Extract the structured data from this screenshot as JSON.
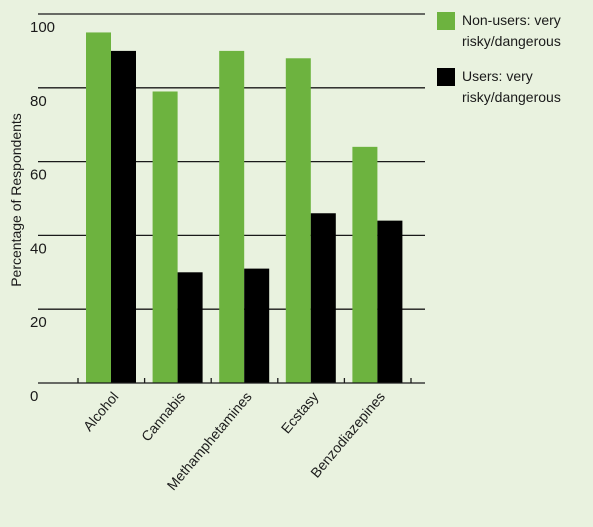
{
  "chart_data": {
    "type": "bar",
    "title": "",
    "xlabel": "",
    "ylabel": "Percentage of Respondents",
    "ylim": [
      0,
      100
    ],
    "yticks": [
      0,
      20,
      40,
      60,
      80,
      100
    ],
    "grid": true,
    "legend_position": "top-right",
    "categories": [
      "Alcohol",
      "Cannabis",
      "Methamphetamines",
      "Ecstasy",
      "Benzodiazepines"
    ],
    "series": [
      {
        "name": "Non-users: very risky/dangerous",
        "color": "#6db33f",
        "values": [
          95,
          79,
          90,
          88,
          64
        ]
      },
      {
        "name": "Users: very risky/dangerous",
        "color": "#000000",
        "values": [
          90,
          30,
          31,
          46,
          44
        ]
      }
    ]
  },
  "legend": {
    "items": [
      {
        "label": "Non-users: very risky/dangerous",
        "color": "#6db33f"
      },
      {
        "label": "Users: very risky/dangerous",
        "color": "#000000"
      }
    ]
  }
}
